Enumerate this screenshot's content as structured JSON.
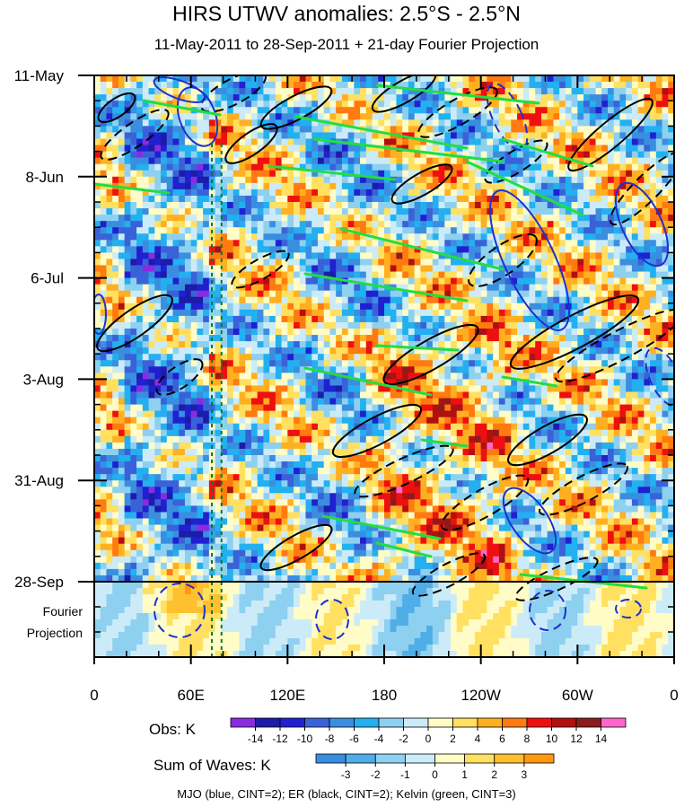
{
  "title": "HIRS UTWV anomalies: 2.5°S - 2.5°N",
  "subtitle": "11-May-2011 to 28-Sep-2011 + 21-day Fourier Projection",
  "chart_data": {
    "type": "heatmap",
    "x_ticks": [
      {
        "lon": 0,
        "label": "0"
      },
      {
        "lon": 60,
        "label": "60E"
      },
      {
        "lon": 120,
        "label": "120E"
      },
      {
        "lon": 180,
        "label": "180"
      },
      {
        "lon": 240,
        "label": "120W"
      },
      {
        "lon": 300,
        "label": "60W"
      },
      {
        "lon": 360,
        "label": "0"
      }
    ],
    "y_ticks": [
      {
        "day": 0,
        "label": "11-May"
      },
      {
        "day": 28,
        "label": "8-Jun"
      },
      {
        "day": 56,
        "label": "6-Jul"
      },
      {
        "day": 84,
        "label": "3-Aug"
      },
      {
        "day": 112,
        "label": "31-Aug"
      },
      {
        "day": 140,
        "label": "28-Sep"
      }
    ],
    "projection_label_line1": "Fourier",
    "projection_label_line2": "Projection",
    "obs_end_day": 140,
    "total_days": 161,
    "ref_lines_lon": [
      73,
      79
    ],
    "obs_legend": {
      "label": "Obs: K",
      "levels": [
        "-14",
        "-12",
        "-10",
        "-8",
        "-6",
        "-4",
        "-2",
        "0",
        "2",
        "4",
        "6",
        "8",
        "10",
        "12",
        "14"
      ],
      "colors": [
        "#8a2be2",
        "#1c1ca8",
        "#2020d0",
        "#3a62d8",
        "#3a8ee0",
        "#22b0f0",
        "#8ed0f0",
        "#ccebf8",
        "#fffcc8",
        "#ffe060",
        "#ffb020",
        "#ff7a10",
        "#ee1010",
        "#b01010",
        "#8c1c1c",
        "#ff66cc"
      ]
    },
    "waves_legend": {
      "label": "Sum of Waves: K",
      "levels": [
        "-3",
        "-2",
        "-1",
        "0",
        "1",
        "2",
        "3"
      ],
      "colors": [
        "#3a8ee0",
        "#4faee8",
        "#8ed0f0",
        "#ccebf8",
        "#fffcc8",
        "#ffe060",
        "#ffc030",
        "#ff9a10"
      ]
    }
  },
  "footer": "MJO (blue, CINT=2); ER (black, CINT=2); Kelvin (green, CINT=3)"
}
